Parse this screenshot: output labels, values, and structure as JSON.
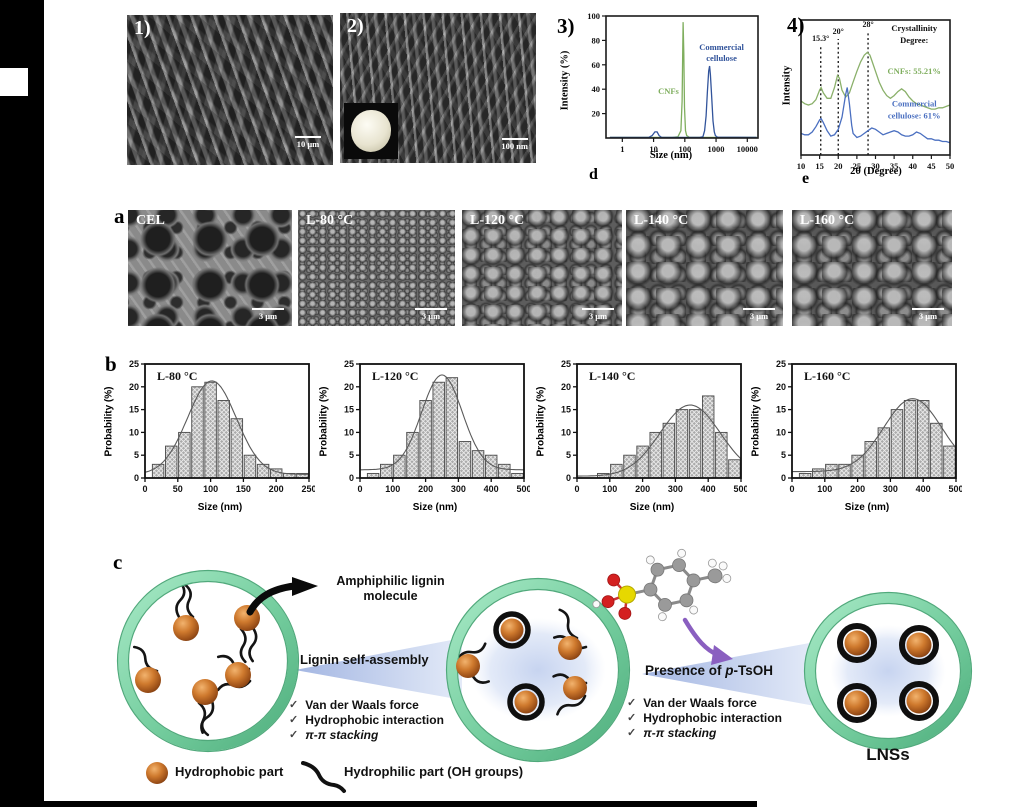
{
  "top_row": {
    "p1": {
      "label": "1)",
      "scale": "10 μm"
    },
    "p2": {
      "label": "2)",
      "scale": "100 nm"
    },
    "p3": {
      "label": "3)",
      "sub": "d"
    },
    "p4": {
      "label": "4)",
      "sub": "e"
    }
  },
  "row_a": {
    "label": "a",
    "panels": [
      {
        "name": "CEL",
        "scale": "3 μm"
      },
      {
        "name": "L-80 °C",
        "scale": "3 μm"
      },
      {
        "name": "L-120 °C",
        "scale": "3 μm"
      },
      {
        "name": "L-140 °C",
        "scale": "3 μm"
      },
      {
        "name": "L-160 °C",
        "scale": "3 μm"
      }
    ]
  },
  "row_b": {
    "label": "b"
  },
  "row_c": {
    "label": "c",
    "callout_line1": "Amphiphilic lignin",
    "callout_line2": "molecule",
    "assembly_label": "Lignin self-assembly",
    "check": "✓",
    "forces": [
      "Van der Waals force",
      "Hydrophobic interaction",
      "π-π stacking"
    ],
    "presence_pre": "Presence of ",
    "presence_p": "p",
    "presence_post": "-TsOH",
    "lnss_label": "LNSs",
    "legend_hydrophobic": "Hydrophobic part",
    "legend_hydrophilic": "Hydrophilic part  (OH groups)"
  },
  "chart_data": [
    {
      "id": "dls",
      "type": "line",
      "xlabel": "Size (nm)",
      "ylabel": "Intensity (%)",
      "x_scale": "log",
      "xlim": [
        0.3,
        22000
      ],
      "ylim": [
        0,
        100
      ],
      "x_ticks": [
        1,
        10,
        100,
        1000,
        10000
      ],
      "y_ticks": [
        20,
        40,
        60,
        80,
        100
      ],
      "series": [
        {
          "name": "CNFs",
          "color": "#7fae5e",
          "label_lines": [
            "CNFs"
          ],
          "label_at": [
            30,
            36
          ],
          "points": [
            [
              0.4,
              0.5
            ],
            [
              5,
              0.5
            ],
            [
              40,
              0.5
            ],
            [
              60,
              1
            ],
            [
              75,
              6
            ],
            [
              82,
              30
            ],
            [
              88,
              95
            ],
            [
              93,
              70
            ],
            [
              98,
              25
            ],
            [
              105,
              6
            ],
            [
              115,
              2
            ],
            [
              140,
              0.5
            ],
            [
              20000,
              0.5
            ]
          ]
        },
        {
          "name": "Commercial cellulose",
          "color": "#32549b",
          "label_lines": [
            "Commercial",
            "cellulose"
          ],
          "label_at": [
            1500,
            72
          ],
          "points": [
            [
              0.4,
              0.5
            ],
            [
              7,
              0.5
            ],
            [
              9,
              2
            ],
            [
              11,
              5
            ],
            [
              13,
              5
            ],
            [
              15,
              2
            ],
            [
              18,
              0.5
            ],
            [
              300,
              0.5
            ],
            [
              380,
              1
            ],
            [
              430,
              6
            ],
            [
              480,
              18
            ],
            [
              530,
              38
            ],
            [
              580,
              55
            ],
            [
              620,
              59
            ],
            [
              660,
              52
            ],
            [
              720,
              35
            ],
            [
              800,
              14
            ],
            [
              880,
              5
            ],
            [
              950,
              2
            ],
            [
              1100,
              0.7
            ],
            [
              20000,
              0.5
            ]
          ]
        }
      ]
    },
    {
      "id": "xrd",
      "type": "line",
      "xlabel": "2θ (Degree)",
      "ylabel": "Intensity",
      "xlim": [
        10,
        50
      ],
      "ylim": [
        0,
        100
      ],
      "x_ticks": [
        10,
        15,
        20,
        25,
        30,
        35,
        40,
        45,
        50
      ],
      "y_ticks": [],
      "vlines": [
        {
          "x": 15.3,
          "label": "15.3°"
        },
        {
          "x": 20,
          "label": "20°"
        },
        {
          "x": 28,
          "label": "28°"
        }
      ],
      "annotations": [
        {
          "lines": [
            "Crystallinity",
            "Degree:"
          ],
          "color": "#111111",
          "fx": 0.76,
          "fy": 0.08
        },
        {
          "lines": [
            "CNFs: 55.21%"
          ],
          "color": "#7fae5e",
          "fx": 0.76,
          "fy": 0.4
        },
        {
          "lines": [
            "Commercial",
            "cellulose: 61%"
          ],
          "color": "#4a6fc0",
          "fx": 0.76,
          "fy": 0.64
        }
      ],
      "series": [
        {
          "name": "CNFs",
          "color": "#8ab06a",
          "points": [
            [
              10,
              40
            ],
            [
              11,
              38
            ],
            [
              12,
              37
            ],
            [
              13,
              38
            ],
            [
              14,
              41
            ],
            [
              15,
              48
            ],
            [
              15.4,
              50
            ],
            [
              16,
              46
            ],
            [
              17,
              42
            ],
            [
              18,
              42
            ],
            [
              19,
              50
            ],
            [
              19.8,
              59
            ],
            [
              20.3,
              57
            ],
            [
              21,
              48
            ],
            [
              22,
              43
            ],
            [
              23,
              46
            ],
            [
              24,
              54
            ],
            [
              25,
              62
            ],
            [
              26,
              69
            ],
            [
              27,
              74
            ],
            [
              27.8,
              76
            ],
            [
              28.5,
              74
            ],
            [
              29,
              70
            ],
            [
              30,
              62
            ],
            [
              31,
              54
            ],
            [
              32,
              48
            ],
            [
              33,
              44
            ],
            [
              34,
              42
            ],
            [
              35,
              44
            ],
            [
              36,
              47
            ],
            [
              37,
              49
            ],
            [
              38,
              47
            ],
            [
              39,
              43
            ],
            [
              40,
              40
            ],
            [
              41,
              38
            ],
            [
              42,
              37
            ],
            [
              43,
              36
            ],
            [
              44,
              35
            ],
            [
              45,
              34
            ],
            [
              46,
              34
            ],
            [
              47,
              35
            ],
            [
              48,
              35
            ],
            [
              49,
              36
            ],
            [
              50,
              37
            ]
          ]
        },
        {
          "name": "Commercial cellulose",
          "color": "#4a6fc0",
          "points": [
            [
              10,
              16
            ],
            [
              11,
              15
            ],
            [
              12,
              15
            ],
            [
              13,
              17
            ],
            [
              14,
              21
            ],
            [
              15,
              26
            ],
            [
              15.4,
              27
            ],
            [
              16,
              24
            ],
            [
              17,
              18
            ],
            [
              18,
              14
            ],
            [
              19,
              15
            ],
            [
              20,
              19
            ],
            [
              21,
              28
            ],
            [
              22,
              45
            ],
            [
              22.4,
              50
            ],
            [
              23,
              38
            ],
            [
              23.6,
              22
            ],
            [
              24,
              16
            ],
            [
              25,
              13
            ],
            [
              26,
              14
            ],
            [
              27,
              16
            ],
            [
              28,
              18
            ],
            [
              29,
              20
            ],
            [
              30,
              19
            ],
            [
              31,
              17
            ],
            [
              32,
              15
            ],
            [
              33,
              16
            ],
            [
              34,
              17
            ],
            [
              35,
              18
            ],
            [
              36,
              17
            ],
            [
              37,
              15
            ],
            [
              38,
              14
            ],
            [
              39,
              14
            ],
            [
              40,
              15
            ],
            [
              41,
              17
            ],
            [
              42,
              16
            ],
            [
              43,
              14
            ],
            [
              44,
              12
            ],
            [
              45,
              12
            ],
            [
              46,
              11
            ],
            [
              47,
              11
            ],
            [
              48,
              10
            ],
            [
              49,
              10
            ],
            [
              50,
              9
            ]
          ]
        }
      ]
    },
    {
      "id": "hist-l80",
      "type": "bar",
      "title": "L-80 °C",
      "xlabel": "Size (nm)",
      "ylabel": "Probability (%)",
      "xlim": [
        0,
        250
      ],
      "ylim": [
        0,
        25
      ],
      "x_ticks": [
        0,
        50,
        100,
        150,
        200,
        250
      ],
      "y_ticks": [
        0,
        5,
        10,
        15,
        20,
        25
      ],
      "categories": [
        20,
        40,
        60,
        80,
        100,
        120,
        140,
        160,
        180,
        200,
        220,
        240
      ],
      "values": [
        3,
        7,
        10,
        20,
        21,
        17,
        13,
        5,
        3,
        2,
        1,
        1
      ],
      "curve": {
        "mean": 102,
        "sigma": 37,
        "peak": 20.5,
        "base": 0.8
      }
    },
    {
      "id": "hist-l120",
      "type": "bar",
      "title": "L-120 °C",
      "xlabel": "Size (nm)",
      "ylabel": "Probability (%)",
      "xlim": [
        0,
        500
      ],
      "ylim": [
        0,
        25
      ],
      "x_ticks": [
        0,
        100,
        200,
        300,
        400,
        500
      ],
      "y_ticks": [
        0,
        5,
        10,
        15,
        20,
        25
      ],
      "categories": [
        40,
        80,
        120,
        160,
        200,
        240,
        280,
        320,
        360,
        400,
        440,
        480
      ],
      "values": [
        1,
        3,
        5,
        10,
        17,
        21,
        22,
        8,
        6,
        5,
        3,
        1
      ],
      "curve": {
        "mean": 250,
        "sigma": 62,
        "peak": 20.8,
        "base": 1.8
      }
    },
    {
      "id": "hist-l140",
      "type": "bar",
      "title": "L-140 °C",
      "xlabel": "Size (nm)",
      "ylabel": "Probability (%)",
      "xlim": [
        0,
        500
      ],
      "ylim": [
        0,
        25
      ],
      "x_ticks": [
        0,
        100,
        200,
        300,
        400,
        500
      ],
      "y_ticks": [
        0,
        5,
        10,
        15,
        20,
        25
      ],
      "categories": [
        40,
        80,
        120,
        160,
        200,
        240,
        280,
        320,
        360,
        400,
        440,
        480
      ],
      "values": [
        0,
        1,
        3,
        5,
        7,
        10,
        12,
        15,
        15,
        18,
        10,
        4
      ],
      "curve": {
        "mean": 345,
        "sigma": 92,
        "peak": 15.6,
        "base": 0.4
      }
    },
    {
      "id": "hist-l160",
      "type": "bar",
      "title": "L-160 °C",
      "xlabel": "Size (nm)",
      "ylabel": "Probability (%)",
      "xlim": [
        0,
        500
      ],
      "ylim": [
        0,
        25
      ],
      "x_ticks": [
        0,
        100,
        200,
        300,
        400,
        500
      ],
      "y_ticks": [
        0,
        5,
        10,
        15,
        20,
        25
      ],
      "categories": [
        40,
        80,
        120,
        160,
        200,
        240,
        280,
        320,
        360,
        400,
        440,
        480
      ],
      "values": [
        1,
        2,
        3,
        3,
        5,
        8,
        11,
        15,
        17,
        17,
        12,
        7
      ],
      "curve": {
        "mean": 368,
        "sigma": 88,
        "peak": 16.0,
        "base": 1.4
      }
    }
  ]
}
